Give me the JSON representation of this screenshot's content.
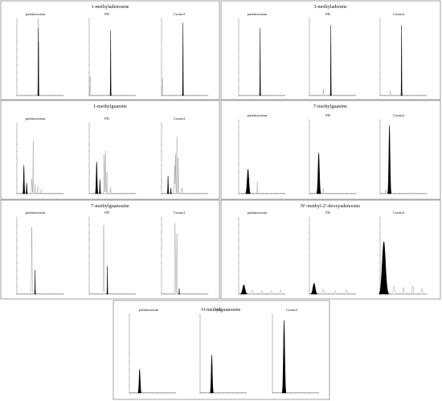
{
  "figure": {
    "background": "#ffffff",
    "border_color": "#8a8a8a",
    "trace_color": "#000000",
    "ghost_color": "#777777"
  },
  "chart_data": [
    {
      "type": "line",
      "title": "1-methyladenosine",
      "subplots": [
        {
          "name": "parkinsonism",
          "peaks": [
            [
              4.6,
              88,
              0.04,
              1
            ],
            [
              4.65,
              70,
              0.03,
              1
            ]
          ]
        },
        {
          "name": "PD",
          "peaks": [
            [
              0.2,
              25,
              0.03,
              0
            ],
            [
              4.6,
              84,
              0.04,
              1
            ]
          ]
        },
        {
          "name": "Control",
          "peaks": [
            [
              0.2,
              22,
              0.03,
              0
            ],
            [
              4.6,
              94,
              0.04,
              1
            ]
          ]
        }
      ]
    },
    {
      "type": "line",
      "title": "3-methyladenine",
      "subplots": [
        {
          "name": "parkinsonism",
          "peaks": [
            [
              4.6,
              87,
              0.04,
              1
            ]
          ]
        },
        {
          "name": "PD",
          "peaks": [
            [
              3.0,
              8,
              0.05,
              0
            ],
            [
              4.6,
              91,
              0.04,
              1
            ]
          ]
        },
        {
          "name": "Control",
          "peaks": [
            [
              2.2,
              6,
              0.05,
              0
            ],
            [
              4.6,
              91,
              0.04,
              1
            ]
          ]
        }
      ]
    },
    {
      "type": "line",
      "title": "1-methylguanine",
      "subplots": [
        {
          "name": "parkinsonism",
          "peaks": [
            [
              1.5,
              40,
              0.08,
              1
            ],
            [
              2.1,
              15,
              0.06,
              1
            ],
            [
              3.2,
              20,
              0.06,
              0
            ],
            [
              3.5,
              74,
              0.04,
              0
            ],
            [
              3.9,
              12,
              0.04,
              0
            ],
            [
              4.5,
              10,
              0.04,
              0
            ],
            [
              5.2,
              5,
              0.04,
              0
            ]
          ]
        },
        {
          "name": "PD",
          "peaks": [
            [
              1.6,
              45,
              0.1,
              1
            ],
            [
              2.3,
              20,
              0.06,
              1
            ],
            [
              3.2,
              55,
              0.05,
              0
            ],
            [
              3.5,
              60,
              0.05,
              0
            ],
            [
              3.8,
              30,
              0.05,
              0
            ],
            [
              4.6,
              8,
              0.05,
              0
            ]
          ]
        },
        {
          "name": "Control",
          "peaks": [
            [
              1.4,
              25,
              0.06,
              1
            ],
            [
              2.0,
              8,
              0.05,
              1
            ],
            [
              2.8,
              40,
              0.05,
              0
            ],
            [
              3.0,
              55,
              0.05,
              0
            ],
            [
              3.3,
              80,
              0.04,
              0
            ],
            [
              3.6,
              50,
              0.04,
              0
            ],
            [
              4.4,
              8,
              0.05,
              0
            ]
          ]
        }
      ]
    },
    {
      "type": "line",
      "title": "7-methylguanine",
      "subplots": [
        {
          "name": "parkinsonism",
          "peaks": [
            [
              2.0,
              33,
              0.18,
              1
            ],
            [
              4.0,
              16,
              0.03,
              0
            ]
          ]
        },
        {
          "name": "PD",
          "peaks": [
            [
              2.0,
              55,
              0.15,
              1
            ],
            [
              3.0,
              6,
              0.05,
              0
            ]
          ]
        },
        {
          "name": "Control",
          "peaks": [
            [
              2.0,
              92,
              0.13,
              1
            ],
            [
              1.2,
              5,
              0.06,
              0
            ]
          ]
        }
      ]
    },
    {
      "type": "line",
      "title": "7-methylguanosine",
      "subplots": [
        {
          "name": "parkinsonism",
          "peaks": [
            [
              3.2,
              86,
              0.06,
              0
            ],
            [
              3.9,
              31,
              0.04,
              1
            ]
          ]
        },
        {
          "name": "PD",
          "peaks": [
            [
              3.1,
              89,
              0.06,
              0
            ],
            [
              3.9,
              36,
              0.04,
              1
            ]
          ]
        },
        {
          "name": "Control",
          "peaks": [
            [
              2.9,
              91,
              0.06,
              0
            ],
            [
              3.3,
              78,
              0.05,
              0
            ],
            [
              3.8,
              7,
              0.04,
              1
            ]
          ]
        }
      ]
    },
    {
      "type": "line",
      "title": "N⁶-methyl-2′-deoxyadenosine",
      "subplots": [
        {
          "name": "parkinsonism",
          "peaks": [
            [
              1.1,
              12,
              0.25,
              1
            ],
            [
              3.0,
              5,
              0.1,
              0
            ],
            [
              5.0,
              4,
              0.1,
              0
            ],
            [
              7.0,
              4,
              0.1,
              0
            ],
            [
              9.0,
              5,
              0.1,
              0
            ]
          ]
        },
        {
          "name": "PD",
          "peaks": [
            [
              1.0,
              14,
              0.25,
              1
            ],
            [
              3.0,
              6,
              0.1,
              0
            ],
            [
              5.5,
              4,
              0.1,
              0
            ],
            [
              8.0,
              5,
              0.1,
              0
            ]
          ]
        },
        {
          "name": "Control",
          "peaks": [
            [
              0.8,
              68,
              0.35,
              1
            ],
            [
              3.0,
              10,
              0.15,
              0
            ],
            [
              5.0,
              8,
              0.1,
              0
            ],
            [
              7.0,
              10,
              0.1,
              0
            ],
            [
              9.0,
              7,
              0.1,
              0
            ]
          ]
        }
      ]
    },
    {
      "type": "line",
      "title": "O-methylguanosine",
      "subplots": [
        {
          "name": "parkinsonism",
          "peaks": [
            [
              2.2,
              30,
              0.12,
              1
            ]
          ]
        },
        {
          "name": "PD",
          "peaks": [
            [
              2.5,
              48,
              0.12,
              1
            ]
          ]
        },
        {
          "name": "Control",
          "peaks": [
            [
              2.5,
              92,
              0.14,
              1
            ]
          ]
        }
      ]
    }
  ]
}
